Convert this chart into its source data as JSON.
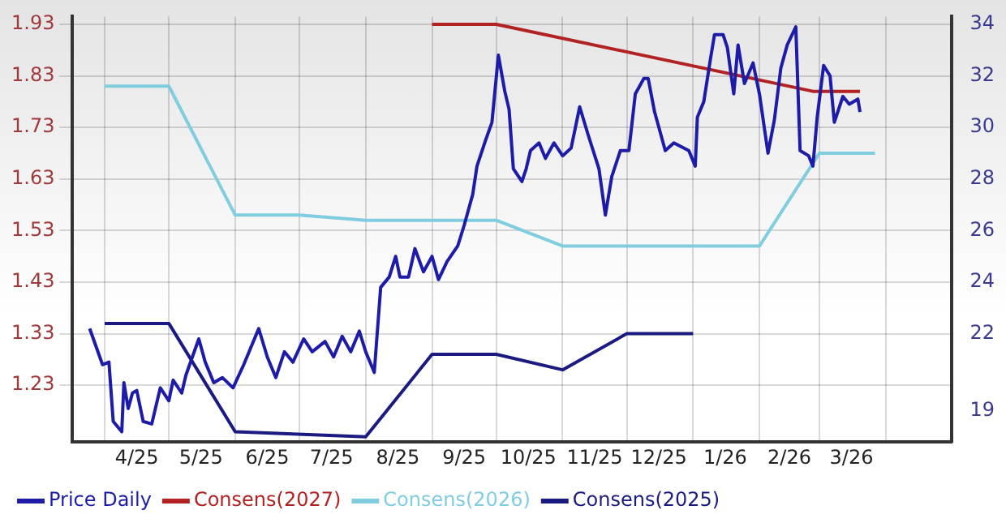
{
  "chart_data": {
    "type": "line",
    "ylim": [
      1.12,
      1.945
    ],
    "yticks": [
      1.23,
      1.33,
      1.43,
      1.53,
      1.63,
      1.73,
      1.83,
      1.93
    ],
    "y2lim": [
      17.8,
      34.3
    ],
    "y2ticks": [
      19,
      22,
      24,
      26,
      28,
      30,
      32,
      34
    ],
    "xlim": [
      "2025-03-17",
      "2026-05-02"
    ],
    "xticks": [
      {
        "value": "2025-04-01",
        "label": null
      },
      {
        "value": "2025-04-16",
        "label": "4/25"
      },
      {
        "value": "2025-05-01",
        "label": null
      },
      {
        "value": "2025-05-16",
        "label": "5/25"
      },
      {
        "value": "2025-06-01",
        "label": null
      },
      {
        "value": "2025-06-16",
        "label": "6/25"
      },
      {
        "value": "2025-07-01",
        "label": null
      },
      {
        "value": "2025-07-16",
        "label": "7/25"
      },
      {
        "value": "2025-08-01",
        "label": null
      },
      {
        "value": "2025-08-16",
        "label": "8/25"
      },
      {
        "value": "2025-09-01",
        "label": null
      },
      {
        "value": "2025-09-16",
        "label": "9/25"
      },
      {
        "value": "2025-10-01",
        "label": null
      },
      {
        "value": "2025-10-16",
        "label": "10/25"
      },
      {
        "value": "2025-11-01",
        "label": null
      },
      {
        "value": "2025-11-16",
        "label": "11/25"
      },
      {
        "value": "2025-12-01",
        "label": null
      },
      {
        "value": "2025-12-16",
        "label": "12/25"
      },
      {
        "value": "2026-01-01",
        "label": null
      },
      {
        "value": "2026-01-16",
        "label": "1/26"
      },
      {
        "value": "2026-02-01",
        "label": null
      },
      {
        "value": "2026-02-15",
        "label": "2/26"
      },
      {
        "value": "2026-03-01",
        "label": null
      },
      {
        "value": "2026-03-16",
        "label": "3/26"
      },
      {
        "value": "2026-04-01",
        "label": null
      }
    ],
    "grid": true,
    "legend": "bottom left",
    "marker": "none",
    "line_style": "solid",
    "series": [
      {
        "name": "Price Daily",
        "color": "#1c1ca8",
        "axis": "y2",
        "x": [
          "2025-03-25",
          "2025-03-28",
          "2025-03-31",
          "2025-04-03",
          "2025-04-05",
          "2025-04-09",
          "2025-04-10",
          "2025-04-12",
          "2025-04-14",
          "2025-04-16",
          "2025-04-19",
          "2025-04-23",
          "2025-04-27",
          "2025-05-01",
          "2025-05-03",
          "2025-05-07",
          "2025-05-09",
          "2025-05-15",
          "2025-05-18",
          "2025-05-22",
          "2025-05-26",
          "2025-05-31",
          "2025-06-05",
          "2025-06-12",
          "2025-06-16",
          "2025-06-20",
          "2025-06-24",
          "2025-06-28",
          "2025-07-03",
          "2025-07-07",
          "2025-07-13",
          "2025-07-17",
          "2025-07-21",
          "2025-07-25",
          "2025-07-29",
          "2025-08-01",
          "2025-08-05",
          "2025-08-08",
          "2025-08-12",
          "2025-08-15",
          "2025-08-17",
          "2025-08-21",
          "2025-08-24",
          "2025-08-28",
          "2025-09-01",
          "2025-09-04",
          "2025-09-08",
          "2025-09-13",
          "2025-09-16",
          "2025-09-20",
          "2025-09-22",
          "2025-09-26",
          "2025-09-29",
          "2025-10-02",
          "2025-10-05",
          "2025-10-07",
          "2025-10-09",
          "2025-10-13",
          "2025-10-15",
          "2025-10-17",
          "2025-10-21",
          "2025-10-24",
          "2025-10-28",
          "2025-11-01",
          "2025-11-05",
          "2025-11-09",
          "2025-11-13",
          "2025-11-18",
          "2025-11-21",
          "2025-11-24",
          "2025-11-28",
          "2025-12-02",
          "2025-12-05",
          "2025-12-09",
          "2025-12-11",
          "2025-12-14",
          "2025-12-19",
          "2025-12-23",
          "2025-12-30",
          "2026-01-02",
          "2026-01-03",
          "2026-01-06",
          "2026-01-09",
          "2026-01-11",
          "2026-01-15",
          "2026-01-17",
          "2026-01-20",
          "2026-01-22",
          "2026-01-25",
          "2026-01-29",
          "2026-02-01",
          "2026-02-05",
          "2026-02-08",
          "2026-02-11",
          "2026-02-14",
          "2026-02-18",
          "2026-02-20",
          "2026-02-24",
          "2026-02-26",
          "2026-02-28",
          "2026-03-03",
          "2026-03-06",
          "2026-03-08",
          "2026-03-12",
          "2026-03-15",
          "2026-03-19",
          "2026-03-20"
        ],
        "values": [
          22.2,
          21.5,
          20.8,
          20.9,
          18.6,
          18.2,
          20.1,
          19.1,
          19.7,
          19.8,
          18.6,
          18.5,
          19.9,
          19.4,
          20.2,
          19.7,
          20.4,
          21.8,
          20.9,
          20.1,
          20.3,
          19.9,
          20.8,
          22.2,
          21.1,
          20.3,
          21.3,
          20.9,
          21.8,
          21.3,
          21.7,
          21.1,
          21.9,
          21.3,
          22.1,
          21.3,
          20.5,
          23.8,
          24.2,
          25.0,
          24.2,
          24.2,
          25.3,
          24.4,
          25.0,
          24.1,
          24.8,
          25.4,
          26.2,
          27.4,
          28.5,
          29.5,
          30.2,
          32.8,
          31.4,
          30.7,
          28.4,
          27.9,
          28.4,
          29.1,
          29.4,
          28.8,
          29.4,
          28.9,
          29.2,
          30.8,
          29.7,
          28.4,
          26.6,
          28.1,
          29.1,
          29.1,
          31.3,
          31.9,
          31.9,
          30.6,
          29.1,
          29.4,
          29.1,
          28.5,
          30.4,
          31.0,
          32.6,
          33.6,
          33.6,
          33.1,
          31.3,
          33.2,
          31.7,
          32.5,
          31.3,
          29.0,
          30.3,
          32.3,
          33.2,
          33.9,
          29.1,
          28.9,
          28.5,
          30.4,
          32.4,
          32.0,
          30.2,
          31.2,
          30.9,
          31.1,
          30.6
        ]
      },
      {
        "name": "Consens(2027)",
        "color": "#b22222",
        "x": [
          "2025-09-01",
          "2025-10-01",
          "2026-02-26",
          "2026-03-20"
        ],
        "values": [
          1.93,
          1.93,
          1.8,
          1.8
        ]
      },
      {
        "name": "Consens(2026)",
        "color": "#80cde0",
        "x": [
          "2025-04-01",
          "2025-05-01",
          "2025-06-01",
          "2025-07-01",
          "2025-08-01",
          "2025-10-01",
          "2025-11-01",
          "2026-02-01",
          "2026-03-01",
          "2026-03-27"
        ],
        "values": [
          1.81,
          1.81,
          1.56,
          1.56,
          1.55,
          1.55,
          1.5,
          1.5,
          1.68,
          1.68
        ]
      },
      {
        "name": "Consens(2025)",
        "color": "#1a1a80",
        "x": [
          "2025-04-01",
          "2025-05-01",
          "2025-06-01",
          "2025-08-01",
          "2025-09-01",
          "2025-10-01",
          "2025-11-01",
          "2025-12-01",
          "2026-01-01"
        ],
        "values": [
          1.35,
          1.35,
          1.14,
          1.13,
          1.29,
          1.29,
          1.26,
          1.33,
          1.33
        ]
      }
    ]
  }
}
